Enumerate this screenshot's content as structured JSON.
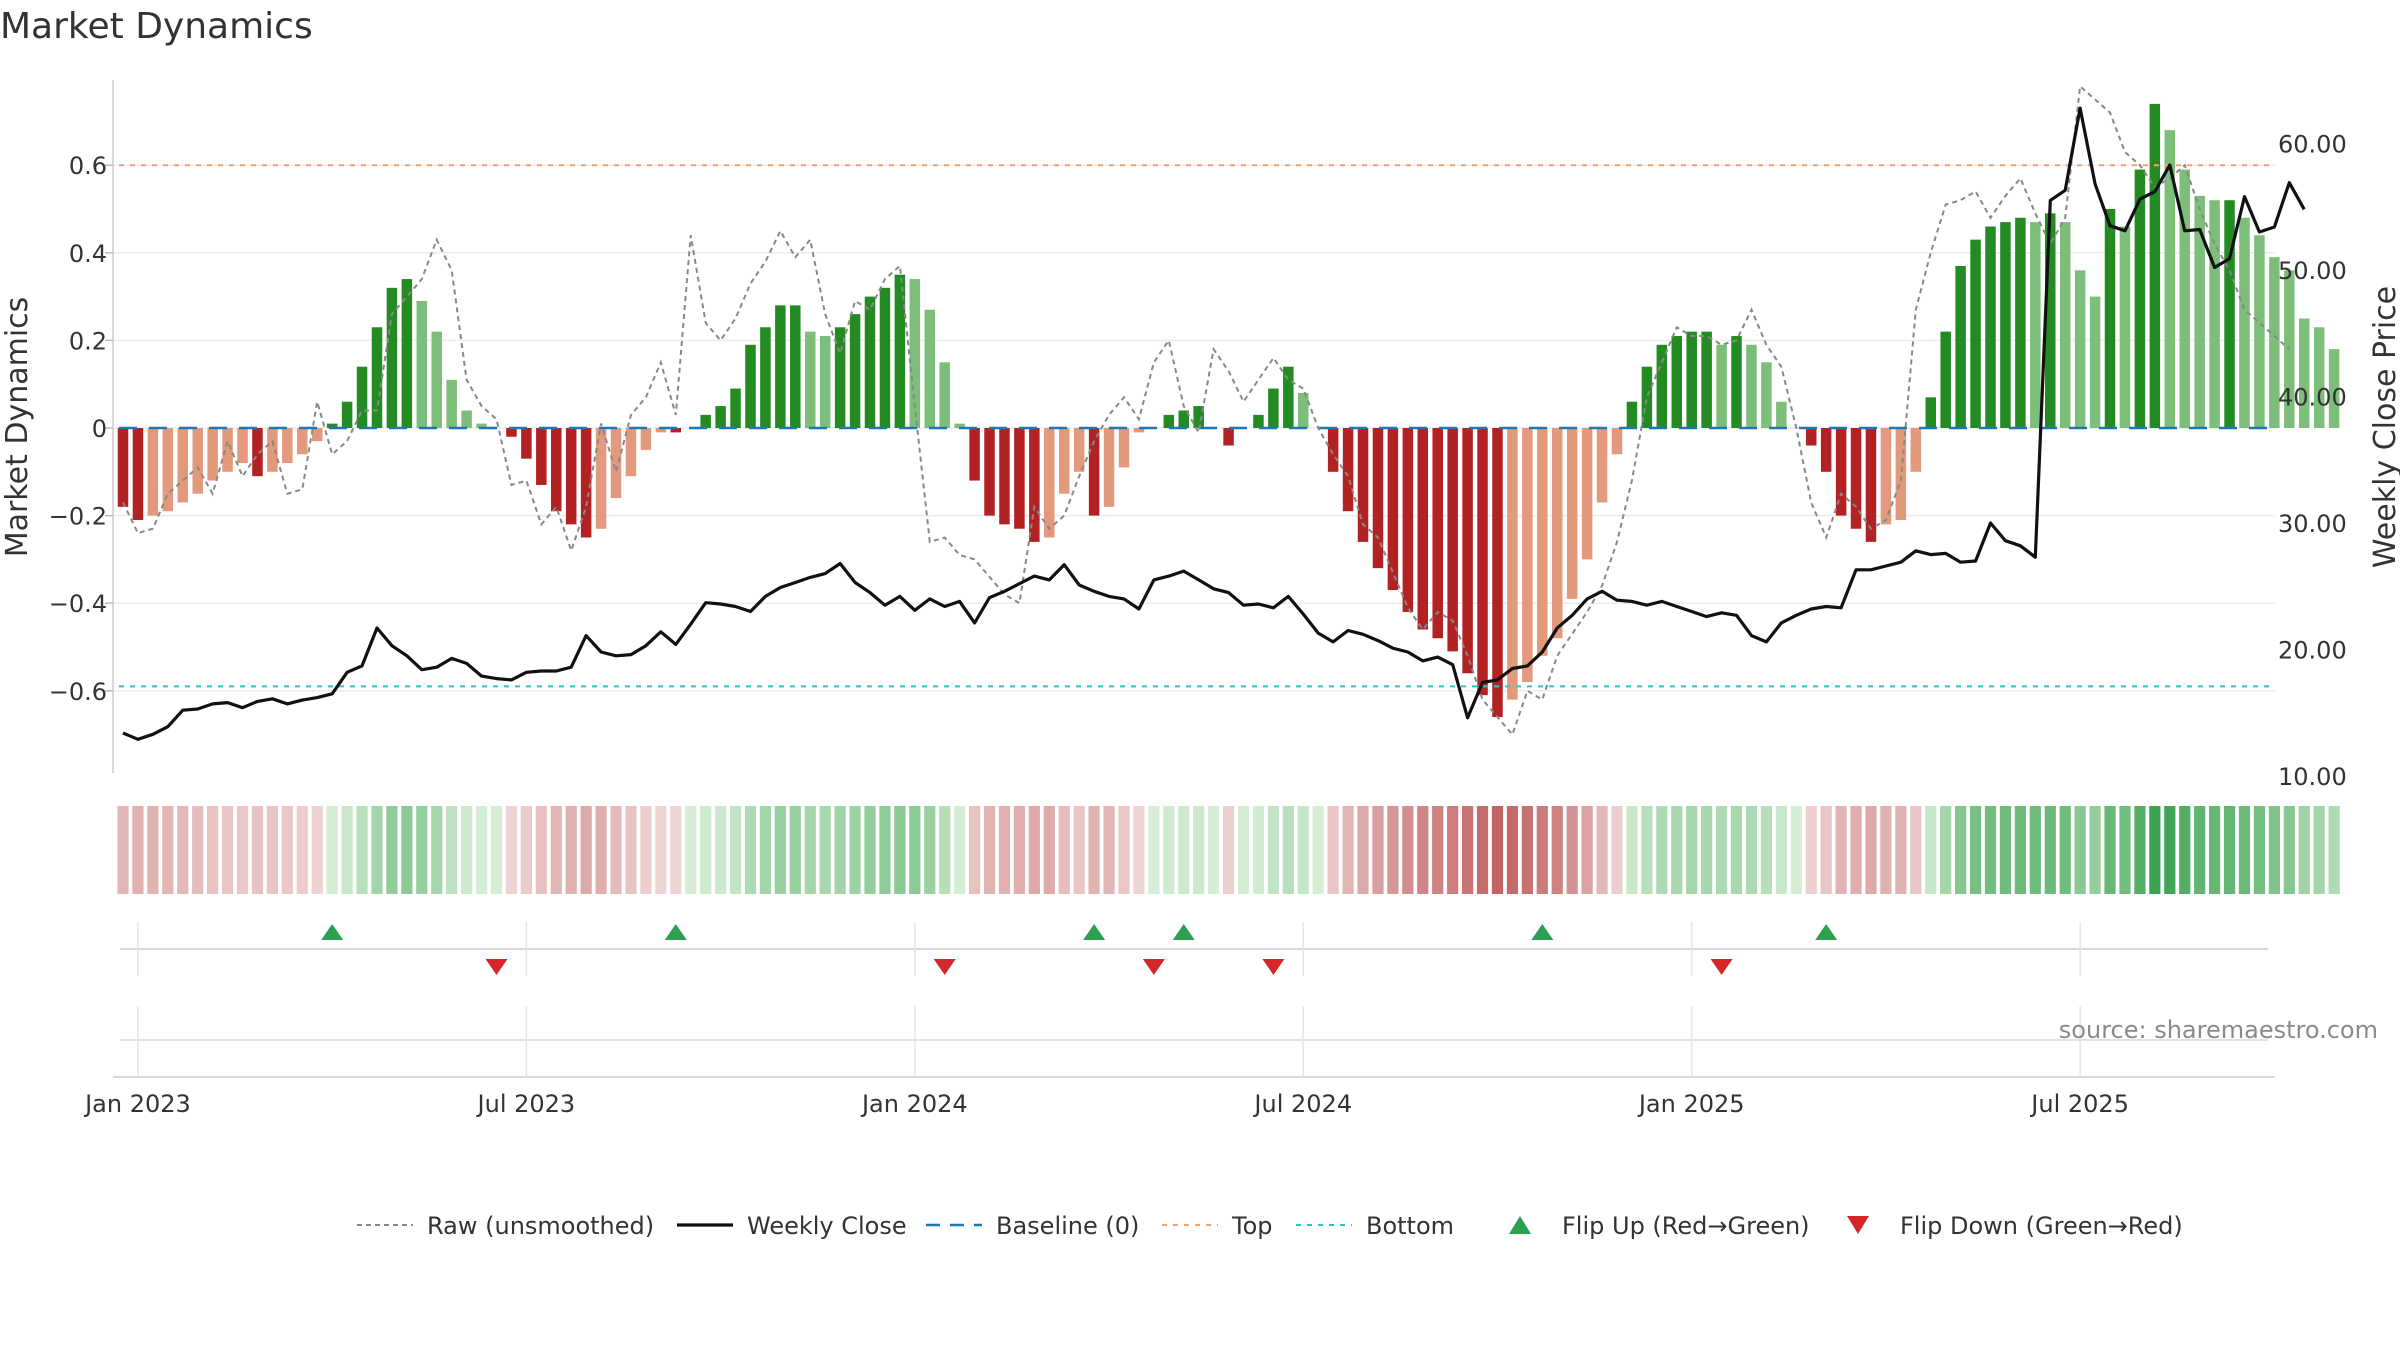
{
  "chart_data": {
    "type": "bar",
    "title": "Market Dynamics",
    "ylabel_left": "Market Dynamics",
    "ylabel_right": "Weekly Close Price",
    "ylim_left": [
      -0.78,
      0.78
    ],
    "ylim_right": [
      10,
      67
    ],
    "yticks_left": [
      {
        "v": 0.6,
        "label": "0.6"
      },
      {
        "v": 0.4,
        "label": "0.4"
      },
      {
        "v": 0.2,
        "label": "0.2"
      },
      {
        "v": 0,
        "label": "0"
      },
      {
        "v": -0.2,
        "label": "−0.2"
      },
      {
        "v": -0.4,
        "label": "−0.4"
      },
      {
        "v": -0.6,
        "label": "−0.6"
      }
    ],
    "yticks_right": [
      {
        "v": 60,
        "label": "60.00"
      },
      {
        "v": 50,
        "label": "50.00"
      },
      {
        "v": 40,
        "label": "40.00"
      },
      {
        "v": 30,
        "label": "30.00"
      },
      {
        "v": 20,
        "label": "20.00"
      },
      {
        "v": 10,
        "label": "10.00"
      }
    ],
    "x_ticks": [
      {
        "week": 1,
        "label": "Jan 2023"
      },
      {
        "week": 27,
        "label": "Jul 2023"
      },
      {
        "week": 53,
        "label": "Jan 2024"
      },
      {
        "week": 79,
        "label": "Jul 2024"
      },
      {
        "week": 105,
        "label": "Jan 2025"
      },
      {
        "week": 131,
        "label": "Jul 2025"
      }
    ],
    "n_weeks": 144,
    "top_level": 0.6,
    "bottom_level": -0.59,
    "baseline": 0,
    "dynamics": [
      -0.18,
      -0.21,
      -0.2,
      -0.19,
      -0.17,
      -0.15,
      -0.12,
      -0.1,
      -0.08,
      -0.11,
      -0.1,
      -0.08,
      -0.06,
      -0.03,
      0.01,
      0.06,
      0.14,
      0.23,
      0.32,
      0.34,
      0.29,
      0.22,
      0.11,
      0.04,
      0.01,
      0.0,
      -0.02,
      -0.07,
      -0.13,
      -0.19,
      -0.22,
      -0.25,
      -0.23,
      -0.16,
      -0.11,
      -0.05,
      -0.01,
      -0.01,
      0.0,
      0.03,
      0.05,
      0.09,
      0.19,
      0.23,
      0.28,
      0.28,
      0.22,
      0.21,
      0.23,
      0.26,
      0.3,
      0.32,
      0.35,
      0.34,
      0.27,
      0.15,
      0.01,
      -0.12,
      -0.2,
      -0.22,
      -0.23,
      -0.26,
      -0.25,
      -0.15,
      -0.1,
      -0.2,
      -0.18,
      -0.09,
      -0.01,
      0.0,
      0.03,
      0.04,
      0.05,
      0.0,
      -0.04,
      0.0,
      0.03,
      0.09,
      0.14,
      0.08,
      0.0,
      -0.1,
      -0.19,
      -0.26,
      -0.32,
      -0.37,
      -0.42,
      -0.46,
      -0.48,
      -0.51,
      -0.56,
      -0.61,
      -0.66,
      -0.62,
      -0.58,
      -0.52,
      -0.48,
      -0.39,
      -0.3,
      -0.17,
      -0.06,
      0.06,
      0.14,
      0.19,
      0.21,
      0.22,
      0.22,
      0.19,
      0.21,
      0.19,
      0.15,
      0.06,
      0.0,
      -0.04,
      -0.1,
      -0.2,
      -0.23,
      -0.26,
      -0.22,
      -0.21,
      -0.1,
      0.07,
      0.22,
      0.37,
      0.43,
      0.46,
      0.47,
      0.48,
      0.47,
      0.49,
      0.47,
      0.36,
      0.3,
      0.5,
      0.46,
      0.59,
      0.74,
      0.68,
      0.59,
      0.53,
      0.52,
      0.52,
      0.48,
      0.44,
      0.39,
      0.36,
      0.25,
      0.23,
      0.18
    ],
    "raw_unsmoothed": [
      -0.17,
      -0.24,
      -0.23,
      -0.15,
      -0.12,
      -0.09,
      -0.15,
      -0.03,
      -0.11,
      -0.06,
      -0.03,
      -0.15,
      -0.14,
      0.06,
      -0.06,
      -0.03,
      0.04,
      0.04,
      0.26,
      0.3,
      0.34,
      0.43,
      0.36,
      0.11,
      0.05,
      0.02,
      -0.13,
      -0.12,
      -0.22,
      -0.18,
      -0.28,
      -0.18,
      0.01,
      -0.1,
      0.03,
      0.07,
      0.15,
      0.03,
      0.44,
      0.24,
      0.2,
      0.25,
      0.33,
      0.38,
      0.45,
      0.39,
      0.43,
      0.26,
      0.17,
      0.29,
      0.27,
      0.34,
      0.37,
      0.05,
      -0.26,
      -0.25,
      -0.29,
      -0.3,
      -0.34,
      -0.38,
      -0.4,
      -0.18,
      -0.23,
      -0.2,
      -0.11,
      -0.03,
      0.03,
      0.07,
      0.02,
      0.15,
      0.2,
      0.05,
      -0.01,
      0.18,
      0.13,
      0.06,
      0.11,
      0.16,
      0.11,
      0.09,
      0.0,
      -0.06,
      -0.11,
      -0.22,
      -0.25,
      -0.33,
      -0.41,
      -0.46,
      -0.42,
      -0.44,
      -0.52,
      -0.62,
      -0.66,
      -0.7,
      -0.6,
      -0.62,
      -0.52,
      -0.47,
      -0.42,
      -0.36,
      -0.26,
      -0.12,
      0.07,
      0.15,
      0.23,
      0.21,
      0.21,
      0.19,
      0.2,
      0.27,
      0.19,
      0.14,
      0.0,
      -0.17,
      -0.25,
      -0.15,
      -0.18,
      -0.23,
      -0.21,
      -0.12,
      0.27,
      0.4,
      0.51,
      0.52,
      0.54,
      0.48,
      0.53,
      0.57,
      0.49,
      0.42,
      0.48,
      0.78,
      0.75,
      0.72,
      0.63,
      0.6,
      0.55,
      0.57,
      0.6,
      0.5,
      0.42,
      0.36,
      0.27,
      0.24,
      0.21,
      0.18
    ],
    "weekly_close": [
      13.4,
      12.9,
      13.3,
      13.9,
      15.2,
      15.3,
      15.7,
      15.8,
      15.4,
      15.9,
      16.1,
      15.7,
      16.0,
      16.2,
      16.5,
      18.2,
      18.7,
      21.7,
      20.3,
      19.5,
      18.4,
      18.6,
      19.3,
      18.9,
      17.9,
      17.7,
      17.6,
      18.2,
      18.3,
      18.3,
      18.6,
      21.1,
      19.8,
      19.5,
      19.6,
      20.3,
      21.4,
      20.4,
      22.0,
      23.7,
      23.6,
      23.4,
      23.0,
      24.2,
      24.9,
      25.3,
      25.7,
      26.0,
      26.8,
      25.3,
      24.5,
      23.5,
      24.2,
      23.1,
      24.0,
      23.4,
      23.8,
      22.1,
      24.1,
      24.6,
      25.2,
      25.8,
      25.5,
      26.7,
      25.1,
      24.6,
      24.2,
      24.0,
      23.2,
      25.5,
      25.8,
      26.2,
      25.5,
      24.8,
      24.5,
      23.5,
      23.6,
      23.3,
      24.2,
      22.8,
      21.3,
      20.6,
      21.5,
      21.2,
      20.7,
      20.1,
      19.8,
      19.1,
      19.4,
      18.8,
      14.6,
      17.4,
      17.6,
      18.5,
      18.7,
      19.8,
      21.7,
      22.7,
      24.0,
      24.6,
      23.9,
      23.8,
      23.5,
      23.8,
      23.4,
      23.0,
      22.6,
      22.9,
      22.7,
      21.1,
      20.6,
      22.1,
      22.7,
      23.2,
      23.4,
      23.3,
      26.3,
      26.3,
      26.6,
      26.9,
      27.8,
      27.5,
      27.6,
      26.9,
      27.0,
      30.0,
      28.6,
      28.2,
      27.3,
      55.5,
      56.3,
      62.8,
      56.8,
      53.5,
      53.1,
      55.6,
      56.2,
      58.3,
      53.1,
      53.2,
      50.2,
      50.9,
      55.8,
      53.0,
      53.4,
      56.9,
      54.8
    ],
    "flip_up_weeks": [
      14,
      37,
      65,
      71,
      95,
      114
    ],
    "flip_down_weeks": [
      25,
      55,
      69,
      77,
      107
    ],
    "source": "source: sharemaestro.com",
    "legend": [
      {
        "key": "raw",
        "label": "Raw (unsmoothed)"
      },
      {
        "key": "close",
        "label": "Weekly Close"
      },
      {
        "key": "baseline",
        "label": "Baseline (0)"
      },
      {
        "key": "top",
        "label": "Top"
      },
      {
        "key": "bottom",
        "label": "Bottom"
      },
      {
        "key": "flipup",
        "label": "Flip Up (Red→Green)"
      },
      {
        "key": "flipdown",
        "label": "Flip Down (Green→Red)"
      }
    ],
    "colors": {
      "green_strong": "#238b22",
      "green_light": "#7dbf7a",
      "red_strong": "#b22222",
      "red_light": "#e39a7c",
      "close_line": "#111111",
      "raw_line": "#888888",
      "baseline": "#1f77b4",
      "top": "#f4a36b",
      "bottom": "#2bc3d1",
      "flip_up": "#2ca050",
      "flip_down": "#d62728"
    }
  }
}
